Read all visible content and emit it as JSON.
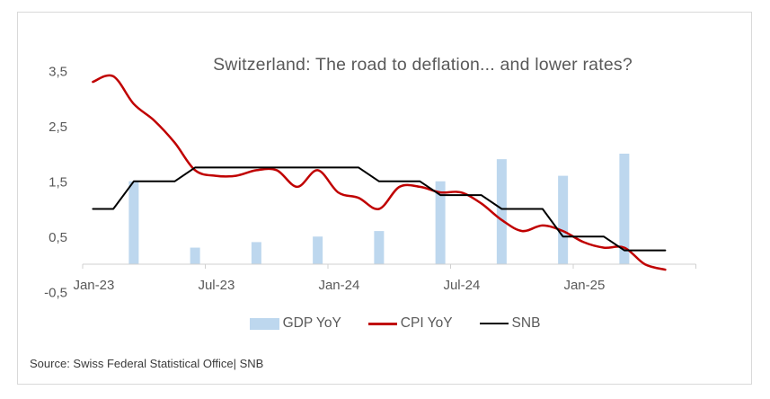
{
  "title": "Switzerland: The road to deflation... and lower rates?",
  "source": "Source: Swiss Federal Statistical Office| SNB",
  "legend": [
    {
      "label": "GDP YoY",
      "swatch": "bar",
      "color": "#BDD7EE"
    },
    {
      "label": "CPI YoY",
      "swatch": "line",
      "color": "#C00000"
    },
    {
      "label": "SNB",
      "swatch": "line",
      "color": "#000000"
    }
  ],
  "chart_data": {
    "type": "combo",
    "title": "Switzerland: The road to deflation... and lower rates?",
    "x_categories": [
      "Jan-23",
      "Feb-23",
      "Mar-23",
      "Apr-23",
      "May-23",
      "Jun-23",
      "Jul-23",
      "Aug-23",
      "Sep-23",
      "Oct-23",
      "Nov-23",
      "Dec-23",
      "Jan-24",
      "Feb-24",
      "Mar-24",
      "Apr-24",
      "May-24",
      "Jun-24",
      "Jul-24",
      "Aug-24",
      "Sep-24",
      "Oct-24",
      "Nov-24",
      "Dec-24",
      "Jan-25",
      "Feb-25",
      "Mar-25",
      "Apr-25",
      "May-25"
    ],
    "x_tick_labels": [
      "Jan-23",
      "Jul-23",
      "Jan-24",
      "Jul-24",
      "Jan-25"
    ],
    "y_tick_labels": [
      "3,5",
      "2,5",
      "1,5",
      "0,5",
      "-0,5"
    ],
    "y_tick_values": [
      3.5,
      2.5,
      1.5,
      0.5,
      -0.5
    ],
    "ylim": [
      -0.5,
      3.5
    ],
    "grid": false,
    "legend_position": "bottom",
    "axis_color": "#d0d0d0",
    "tick_label_color": "#595959",
    "series": [
      {
        "name": "GDP YoY",
        "type": "bar",
        "color": "#BDD7EE",
        "x": [
          "Mar-23",
          "Jun-23",
          "Sep-23",
          "Dec-23",
          "Mar-24",
          "Jun-24",
          "Sep-24",
          "Dec-24",
          "Mar-25"
        ],
        "x_index": [
          2,
          5,
          8,
          11,
          14,
          17,
          20,
          23,
          26
        ],
        "values": [
          1.5,
          0.3,
          0.4,
          0.5,
          0.6,
          1.5,
          1.9,
          1.6,
          2.0
        ]
      },
      {
        "name": "CPI YoY",
        "type": "line",
        "color": "#C00000",
        "smooth": true,
        "width": 2.5,
        "values": [
          3.3,
          3.4,
          2.9,
          2.6,
          2.2,
          1.7,
          1.6,
          1.6,
          1.7,
          1.7,
          1.4,
          1.7,
          1.3,
          1.2,
          1.0,
          1.4,
          1.4,
          1.3,
          1.3,
          1.1,
          0.8,
          0.6,
          0.7,
          0.6,
          0.4,
          0.3,
          0.3,
          0.0,
          -0.1
        ]
      },
      {
        "name": "SNB",
        "type": "line",
        "color": "#000000",
        "smooth": false,
        "width": 2,
        "values": [
          1.0,
          1.0,
          1.5,
          1.5,
          1.5,
          1.75,
          1.75,
          1.75,
          1.75,
          1.75,
          1.75,
          1.75,
          1.75,
          1.75,
          1.5,
          1.5,
          1.5,
          1.25,
          1.25,
          1.25,
          1.0,
          1.0,
          1.0,
          0.5,
          0.5,
          0.5,
          0.25,
          0.25,
          0.25
        ]
      }
    ]
  }
}
